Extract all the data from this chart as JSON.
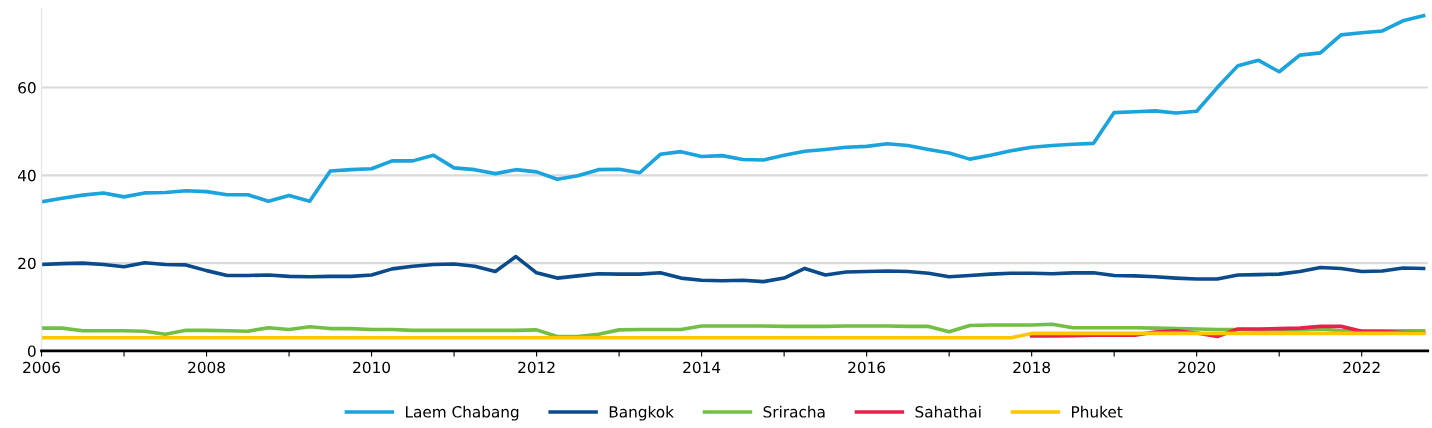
{
  "chart_data": {
    "type": "line",
    "x": [
      2006,
      2006.25,
      2006.5,
      2006.75,
      2007,
      2007.25,
      2007.5,
      2007.75,
      2008,
      2008.25,
      2008.5,
      2008.75,
      2009,
      2009.25,
      2009.5,
      2009.75,
      2010,
      2010.25,
      2010.5,
      2010.75,
      2011,
      2011.25,
      2011.5,
      2011.75,
      2012,
      2012.25,
      2012.5,
      2012.75,
      2013,
      2013.25,
      2013.5,
      2013.75,
      2014,
      2014.25,
      2014.5,
      2014.75,
      2015,
      2015.25,
      2015.5,
      2015.75,
      2016,
      2016.25,
      2016.5,
      2016.75,
      2017,
      2017.25,
      2017.5,
      2017.75,
      2018,
      2018.25,
      2018.5,
      2018.75,
      2019,
      2019.25,
      2019.5,
      2019.75,
      2020,
      2020.25,
      2020.5,
      2020.75,
      2021,
      2021.25,
      2021.5,
      2021.75,
      2022,
      2022.25,
      2022.5,
      2022.75
    ],
    "series": [
      {
        "name": "Laem Chabang",
        "color": "#1aa3dc",
        "values": [
          34,
          34.8,
          35.5,
          36,
          35.1,
          36,
          36.1,
          36.5,
          36.3,
          35.6,
          35.6,
          34.1,
          35.4,
          34.1,
          41,
          41.3,
          41.5,
          43.3,
          43.3,
          44.6,
          41.7,
          41.3,
          40.4,
          41.3,
          40.8,
          39.1,
          39.9,
          41.3,
          41.4,
          40.6,
          44.8,
          45.4,
          44.3,
          44.5,
          43.6,
          43.5,
          44.6,
          45.5,
          45.9,
          46.4,
          46.6,
          47.2,
          46.8,
          45.9,
          45.1,
          43.7,
          44.6,
          45.6,
          46.4,
          46.8,
          47.1,
          47.3,
          54.3,
          54.5,
          54.7,
          54.2,
          54.6,
          60,
          65,
          66.2,
          63.6,
          67.4,
          67.9,
          72,
          72.5,
          72.9,
          75.2,
          76.4
        ]
      },
      {
        "name": "Bangkok",
        "color": "#0b4a8b",
        "values": [
          19.7,
          19.9,
          20,
          19.7,
          19.2,
          20.1,
          19.7,
          19.6,
          18.3,
          17.2,
          17.2,
          17.3,
          17,
          16.9,
          17,
          17,
          17.3,
          18.7,
          19.3,
          19.7,
          19.8,
          19.3,
          18.1,
          21.5,
          17.8,
          16.6,
          17.1,
          17.6,
          17.5,
          17.5,
          17.8,
          16.6,
          16.1,
          16,
          16.1,
          15.8,
          16.6,
          18.8,
          17.3,
          18,
          18.1,
          18.2,
          18.1,
          17.7,
          16.9,
          17.2,
          17.5,
          17.7,
          17.7,
          17.6,
          17.8,
          17.8,
          17.2,
          17.1,
          16.9,
          16.6,
          16.4,
          16.4,
          17.3,
          17.4,
          17.5,
          18.1,
          19,
          18.8,
          18.1,
          18.2,
          18.9,
          18.8
        ]
      },
      {
        "name": "Sriracha",
        "color": "#72bf44",
        "values": [
          5.2,
          5.2,
          4.6,
          4.6,
          4.6,
          4.5,
          3.8,
          4.7,
          4.7,
          4.6,
          4.5,
          5.3,
          4.9,
          5.5,
          5.1,
          5.1,
          4.9,
          4.9,
          4.7,
          4.7,
          4.7,
          4.7,
          4.7,
          4.7,
          4.8,
          3.3,
          3.3,
          3.8,
          4.8,
          4.9,
          4.9,
          4.9,
          5.7,
          5.7,
          5.7,
          5.7,
          5.6,
          5.6,
          5.6,
          5.7,
          5.7,
          5.7,
          5.6,
          5.6,
          4.4,
          5.8,
          5.9,
          5.9,
          5.9,
          6.1,
          5.3,
          5.3,
          5.3,
          5.3,
          5.2,
          5.1,
          5,
          4.9,
          4.9,
          4.8,
          4.8,
          4.8,
          5,
          4.6,
          4.6,
          4.6,
          4.6,
          4.6
        ]
      },
      {
        "name": "Sahathai",
        "color": "#e8204a",
        "values": [
          null,
          null,
          null,
          null,
          null,
          null,
          null,
          null,
          null,
          null,
          null,
          null,
          null,
          null,
          null,
          null,
          null,
          null,
          null,
          null,
          null,
          null,
          null,
          null,
          null,
          null,
          null,
          null,
          null,
          null,
          null,
          null,
          null,
          null,
          null,
          null,
          null,
          null,
          null,
          null,
          null,
          null,
          null,
          null,
          null,
          null,
          null,
          null,
          3.4,
          3.4,
          3.5,
          3.6,
          3.6,
          3.6,
          4.3,
          4.6,
          4.1,
          3.3,
          5,
          5,
          5.1,
          5.2,
          5.6,
          5.6,
          4.5,
          4.4,
          4.2,
          4.1
        ]
      },
      {
        "name": "Phuket",
        "color": "#ffc600",
        "values": [
          3,
          3,
          3,
          3,
          3,
          3,
          3,
          3,
          3,
          3,
          3,
          3,
          3,
          3,
          3,
          3,
          3,
          3,
          3,
          3,
          3,
          3,
          3,
          3,
          3,
          3,
          3,
          3,
          3,
          3,
          3,
          3,
          3,
          3,
          3,
          3,
          3,
          3,
          3,
          3,
          3,
          3,
          3,
          3,
          3,
          3,
          3,
          3,
          4,
          4,
          4,
          4,
          4,
          4,
          4,
          4,
          4,
          4,
          4,
          4,
          4,
          4,
          4,
          4,
          4,
          4,
          4,
          4
        ]
      }
    ],
    "xlim": [
      2006,
      2022.8
    ],
    "xticks": [
      2006,
      {
        "value": 2007,
        "label": null
      },
      2008,
      {
        "value": 2009,
        "label": null
      },
      2010,
      {
        "value": 2011,
        "label": null
      },
      2012,
      {
        "value": 2013,
        "label": null
      },
      2014,
      {
        "value": 2015,
        "label": null
      },
      2016,
      {
        "value": 2017,
        "label": null
      },
      2018,
      {
        "value": 2019,
        "label": null
      },
      2020,
      {
        "value": 2021,
        "label": null
      },
      2022
    ],
    "ylim": [
      0,
      78
    ],
    "yticks": [
      0,
      20,
      40,
      60
    ],
    "grid": "y",
    "legend": "bottom",
    "marker": "none",
    "line_style": "solid"
  }
}
